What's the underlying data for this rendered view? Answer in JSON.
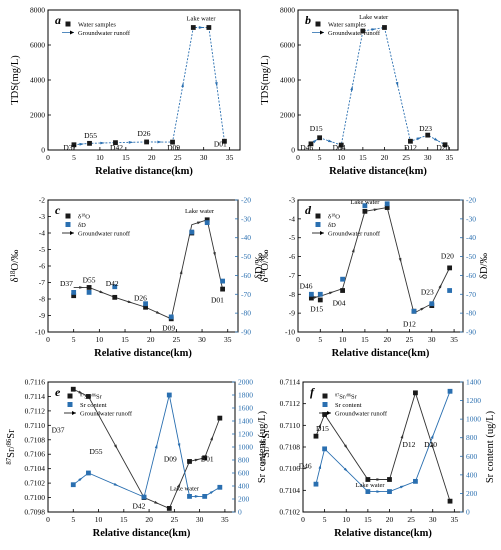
{
  "chart_data": [
    {
      "panel": "a",
      "type": "line",
      "xlabel": "Relative distance(km)",
      "ylabel": "TDS(mg/L)",
      "xlim": [
        0,
        37
      ],
      "ylim": [
        0,
        8000
      ],
      "xticks": [
        "0",
        "5",
        "10",
        "15",
        "20",
        "25",
        "30",
        "35"
      ],
      "yticks": [
        "0",
        "2000",
        "4000",
        "6000",
        "8000"
      ],
      "legend": [
        "Water samples",
        "Groundwater runoff"
      ],
      "series": [
        {
          "marker": "square",
          "x": [
            5,
            8,
            13,
            19,
            24,
            28,
            31,
            34
          ],
          "values": [
            300,
            380,
            420,
            460,
            450,
            7000,
            7000,
            500
          ]
        }
      ],
      "runoff": [
        [
          5,
          300
        ],
        [
          8,
          380
        ],
        [
          13,
          420
        ],
        [
          19,
          460
        ],
        [
          24,
          450
        ],
        [
          28,
          7000
        ],
        [
          31,
          7000
        ],
        [
          34,
          500
        ]
      ],
      "labels": [
        {
          "text": "D37",
          "x": 4.2,
          "y": 0
        },
        {
          "text": "D55",
          "x": 8.2,
          "y": 700
        },
        {
          "text": "D42",
          "x": 13.2,
          "y": 0
        },
        {
          "text": "D26",
          "x": 18.5,
          "y": 800
        },
        {
          "text": "D09",
          "x": 24.2,
          "y": 0
        },
        {
          "text": "Lake water",
          "x": 29.5,
          "y": 7400
        },
        {
          "text": "D01",
          "x": 33.2,
          "y": 200
        }
      ],
      "panel_letter": "a"
    },
    {
      "panel": "b",
      "type": "line",
      "xlabel": "Relative distance(km)",
      "ylabel": "TDS(mg/L)",
      "xlim": [
        0,
        37
      ],
      "ylim": [
        0,
        8000
      ],
      "xticks": [
        "0",
        "5",
        "10",
        "15",
        "20",
        "25",
        "30",
        "35"
      ],
      "yticks": [
        "0",
        "2000",
        "4000",
        "6000",
        "8000"
      ],
      "legend": [
        "Water samples",
        "Groundwater runoff"
      ],
      "series": [
        {
          "marker": "square",
          "x": [
            3,
            5,
            10,
            15,
            20,
            26,
            30,
            34
          ],
          "values": [
            350,
            700,
            280,
            6800,
            7000,
            500,
            850,
            300
          ]
        }
      ],
      "runoff": [
        [
          3,
          350
        ],
        [
          5,
          700
        ],
        [
          10,
          280
        ],
        [
          15,
          6800
        ],
        [
          20,
          7000
        ],
        [
          26,
          500
        ],
        [
          30,
          850
        ],
        [
          34,
          300
        ]
      ],
      "labels": [
        {
          "text": "D46",
          "x": 2.0,
          "y": 0
        },
        {
          "text": "D15",
          "x": 4.2,
          "y": 1100
        },
        {
          "text": "D04",
          "x": 9.5,
          "y": 0
        },
        {
          "text": "Lake water",
          "x": 17.5,
          "y": 7500
        },
        {
          "text": "D12",
          "x": 26.0,
          "y": 0
        },
        {
          "text": "D23",
          "x": 29.5,
          "y": 1100
        },
        {
          "text": "D20",
          "x": 33.5,
          "y": 0
        }
      ],
      "panel_letter": "b"
    },
    {
      "panel": "c",
      "type": "scatter",
      "xlabel": "Relative distance(km)",
      "ylabel": "δ18O/‰",
      "ylabel2": "δD/‰",
      "xlim": [
        0,
        37
      ],
      "ylim": [
        -10,
        -2
      ],
      "ylim2": [
        -90,
        -20
      ],
      "xticks": [
        "0",
        "5",
        "10",
        "15",
        "20",
        "25",
        "30",
        "35"
      ],
      "yticks": [
        "-10",
        "-9",
        "-8",
        "-7",
        "-6",
        "-5",
        "-4",
        "-3",
        "-2"
      ],
      "yticks2": [
        "-90",
        "-80",
        "-70",
        "-60",
        "-50",
        "-40",
        "-30",
        "-20"
      ],
      "legend": [
        "δ18O",
        "δD",
        "Groundwater runoff"
      ],
      "series": [
        {
          "name": "δ18O",
          "marker": "square",
          "axis": "left",
          "x": [
            5,
            8,
            13,
            19,
            24,
            28,
            31,
            34
          ],
          "values": [
            -7.8,
            -7.3,
            -7.9,
            -8.5,
            -9.2,
            -4.0,
            -3.2,
            -7.4
          ]
        },
        {
          "name": "δD",
          "marker": "square",
          "axis": "right",
          "x": [
            5,
            8,
            13,
            19,
            24,
            28,
            31,
            34
          ],
          "values": [
            -69,
            -69,
            -66,
            -75,
            -82,
            -37,
            -32,
            -63
          ]
        }
      ],
      "runoff": [
        [
          5,
          -7.3
        ],
        [
          8,
          -7.3
        ],
        [
          13,
          -7.9
        ],
        [
          19,
          -8.5
        ],
        [
          24,
          -9.2
        ],
        [
          28,
          -3.5
        ],
        [
          31,
          -3.2
        ],
        [
          34,
          -7.4
        ]
      ],
      "labels": [
        {
          "text": "D37",
          "x": 3.6,
          "y": -7.2
        },
        {
          "text": "D55",
          "x": 8.0,
          "y": -7.0
        },
        {
          "text": "D42",
          "x": 12.5,
          "y": -7.2
        },
        {
          "text": "D26",
          "x": 18.0,
          "y": -8.1
        },
        {
          "text": "D09",
          "x": 23.5,
          "y": -9.9
        },
        {
          "text": "Lake water",
          "x": 29.5,
          "y": -2.8
        },
        {
          "text": "D01",
          "x": 33.0,
          "y": -8.2
        }
      ],
      "panel_letter": "c"
    },
    {
      "panel": "d",
      "type": "scatter",
      "xlabel": "Relative distance(km)",
      "ylabel": "δ18O/‰",
      "ylabel2": "δD/‰",
      "xlim": [
        0,
        37
      ],
      "ylim": [
        -10,
        -3
      ],
      "ylim2": [
        -90,
        -20
      ],
      "xticks": [
        "0",
        "5",
        "10",
        "15",
        "20",
        "25",
        "30",
        "35"
      ],
      "yticks": [
        "-10",
        "-9",
        "-8",
        "-7",
        "-6",
        "-5",
        "-4",
        "-3"
      ],
      "yticks2": [
        "-90",
        "-80",
        "-70",
        "-60",
        "-50",
        "-40",
        "-30",
        "-20"
      ],
      "legend": [
        "δ18O",
        "δD",
        "Groundwater runoff"
      ],
      "series": [
        {
          "name": "δ18O",
          "marker": "square",
          "axis": "left",
          "x": [
            3,
            5,
            10,
            15,
            20,
            26,
            30,
            34
          ],
          "values": [
            -8.2,
            -8.3,
            -7.8,
            -3.6,
            -3.4,
            -8.9,
            -8.6,
            -6.6
          ]
        },
        {
          "name": "δD",
          "marker": "square",
          "axis": "right",
          "x": [
            3,
            5,
            10,
            15,
            20,
            26,
            30,
            34
          ],
          "values": [
            -70,
            -70,
            -62,
            -23,
            -22,
            -79,
            -75,
            -68
          ]
        }
      ],
      "runoff": [
        [
          3,
          -8.2
        ],
        [
          5,
          -8.1
        ],
        [
          10,
          -7.7
        ],
        [
          15,
          -3.6
        ],
        [
          20,
          -3.4
        ],
        [
          26,
          -9.0
        ],
        [
          30,
          -8.5
        ],
        [
          34,
          -6.6
        ]
      ],
      "labels": [
        {
          "text": "D46",
          "x": 1.8,
          "y": -7.7
        },
        {
          "text": "D15",
          "x": 4.2,
          "y": -8.9
        },
        {
          "text": "D04",
          "x": 9.2,
          "y": -8.6
        },
        {
          "text": "Lake water",
          "x": 15.0,
          "y": -3.2
        },
        {
          "text": "D12",
          "x": 25.0,
          "y": -9.7
        },
        {
          "text": "D23",
          "x": 29.0,
          "y": -8.0
        },
        {
          "text": "D20",
          "x": 33.5,
          "y": -6.1
        }
      ],
      "panel_letter": "d"
    },
    {
      "panel": "e",
      "type": "scatter",
      "xlabel": "Relative distance(km)",
      "ylabel": "87Sr/86Sr",
      "ylabel2": "Sr content (ug/L)",
      "xlim": [
        0,
        37
      ],
      "ylim": [
        0.7098,
        0.7116
      ],
      "ylim2": [
        0,
        2000
      ],
      "xticks": [
        "0",
        "5",
        "10",
        "15",
        "20",
        "25",
        "30",
        "35"
      ],
      "yticks": [
        "0.7098",
        "0.7100",
        "0.7102",
        "0.7104",
        "0.7106",
        "0.7108",
        "0.7110",
        "0.7112",
        "0.7114",
        "0.7116"
      ],
      "yticks2": [
        "0",
        "200",
        "400",
        "600",
        "800",
        "1000",
        "1200",
        "1400",
        "1600",
        "1800",
        "2000"
      ],
      "legend": [
        "87Sr/86Sr",
        "Sr content",
        "Groundwater runoff"
      ],
      "series": [
        {
          "name": "87Sr/86Sr",
          "marker": "square",
          "axis": "left",
          "x": [
            5,
            8,
            19,
            24,
            28,
            31,
            34
          ],
          "values": [
            0.7115,
            0.7114,
            0.71,
            0.70985,
            0.7105,
            0.71055,
            0.7111
          ]
        },
        {
          "name": "Sr content",
          "marker": "square",
          "axis": "right",
          "x": [
            5,
            8,
            19,
            24,
            28,
            31,
            34
          ],
          "values": [
            420,
            600,
            230,
            1800,
            240,
            240,
            380
          ]
        }
      ],
      "runoff_left": [
        [
          5,
          0.7115
        ],
        [
          8,
          0.7114
        ],
        [
          19,
          0.71
        ],
        [
          24,
          0.70985
        ],
        [
          28,
          0.7105
        ],
        [
          31,
          0.71055
        ],
        [
          34,
          0.7111
        ]
      ],
      "runoff_right": [
        [
          5,
          420
        ],
        [
          8,
          600
        ],
        [
          19,
          230
        ],
        [
          24,
          1800
        ],
        [
          28,
          240
        ],
        [
          31,
          240
        ],
        [
          34,
          380
        ]
      ],
      "labels": [
        {
          "text": "D37",
          "x": 2.0,
          "y": 0.7109
        },
        {
          "text": "D55",
          "x": 9.5,
          "y": 0.7106
        },
        {
          "text": "D42",
          "x": 18.0,
          "y": 0.70985
        },
        {
          "text": "D09",
          "x": 24.2,
          "y": 0.7105
        },
        {
          "text": "D01",
          "x": 31.5,
          "y": 0.7105
        },
        {
          "text": "Lake water",
          "x": 27.0,
          "y": 0.7101
        }
      ],
      "panel_letter": "e"
    },
    {
      "panel": "f",
      "type": "scatter",
      "xlabel": "Relative distance(km)",
      "ylabel": "87Sr/86Sr",
      "ylabel2": "Sr content (ug/L)",
      "xlim": [
        0,
        37
      ],
      "ylim": [
        0.7102,
        0.7114
      ],
      "ylim2": [
        0,
        1400
      ],
      "xticks": [
        "0",
        "5",
        "10",
        "15",
        "20",
        "25",
        "30",
        "35"
      ],
      "yticks": [
        "0.7102",
        "0.7104",
        "0.7106",
        "0.7108",
        "0.7110",
        "0.7112",
        "0.7114"
      ],
      "yticks2": [
        "0",
        "200",
        "400",
        "600",
        "800",
        "1000",
        "1200",
        "1400"
      ],
      "legend": [
        "87Sr/86Sr",
        "Sr content",
        "Groundwater runoff"
      ],
      "series": [
        {
          "name": "87Sr/86Sr",
          "marker": "square",
          "axis": "left",
          "x": [
            3,
            5,
            15,
            20,
            26,
            34
          ],
          "values": [
            0.7109,
            0.7111,
            0.7105,
            0.7105,
            0.7113,
            0.7103
          ]
        },
        {
          "name": "Sr content",
          "marker": "square",
          "axis": "right",
          "x": [
            3,
            5,
            15,
            20,
            26,
            34
          ],
          "values": [
            300,
            680,
            220,
            220,
            330,
            1300
          ]
        }
      ],
      "runoff_left": [
        [
          3,
          0.7109
        ],
        [
          5,
          0.7111
        ],
        [
          15,
          0.7105
        ],
        [
          20,
          0.7105
        ],
        [
          26,
          0.7113
        ],
        [
          34,
          0.7103
        ]
      ],
      "runoff_right": [
        [
          3,
          300
        ],
        [
          5,
          680
        ],
        [
          15,
          220
        ],
        [
          20,
          220
        ],
        [
          26,
          330
        ],
        [
          34,
          1300
        ]
      ],
      "labels": [
        {
          "text": "D15",
          "x": 4.5,
          "y": 0.71095
        },
        {
          "text": "D46",
          "x": 0.5,
          "y": 0.7106
        },
        {
          "text": "Lake water",
          "x": 15.5,
          "y": 0.71043
        },
        {
          "text": "D12",
          "x": 24.5,
          "y": 0.7108
        },
        {
          "text": "D20",
          "x": 29.5,
          "y": 0.7108
        }
      ],
      "panel_letter": "f"
    }
  ],
  "colors": {
    "left_axis": "#000000",
    "right_axis": "#2a6fb0",
    "series_black": "#1a1a1a",
    "series_blue": "#2a6fb0",
    "runoff_line": "#2a6fb0"
  }
}
